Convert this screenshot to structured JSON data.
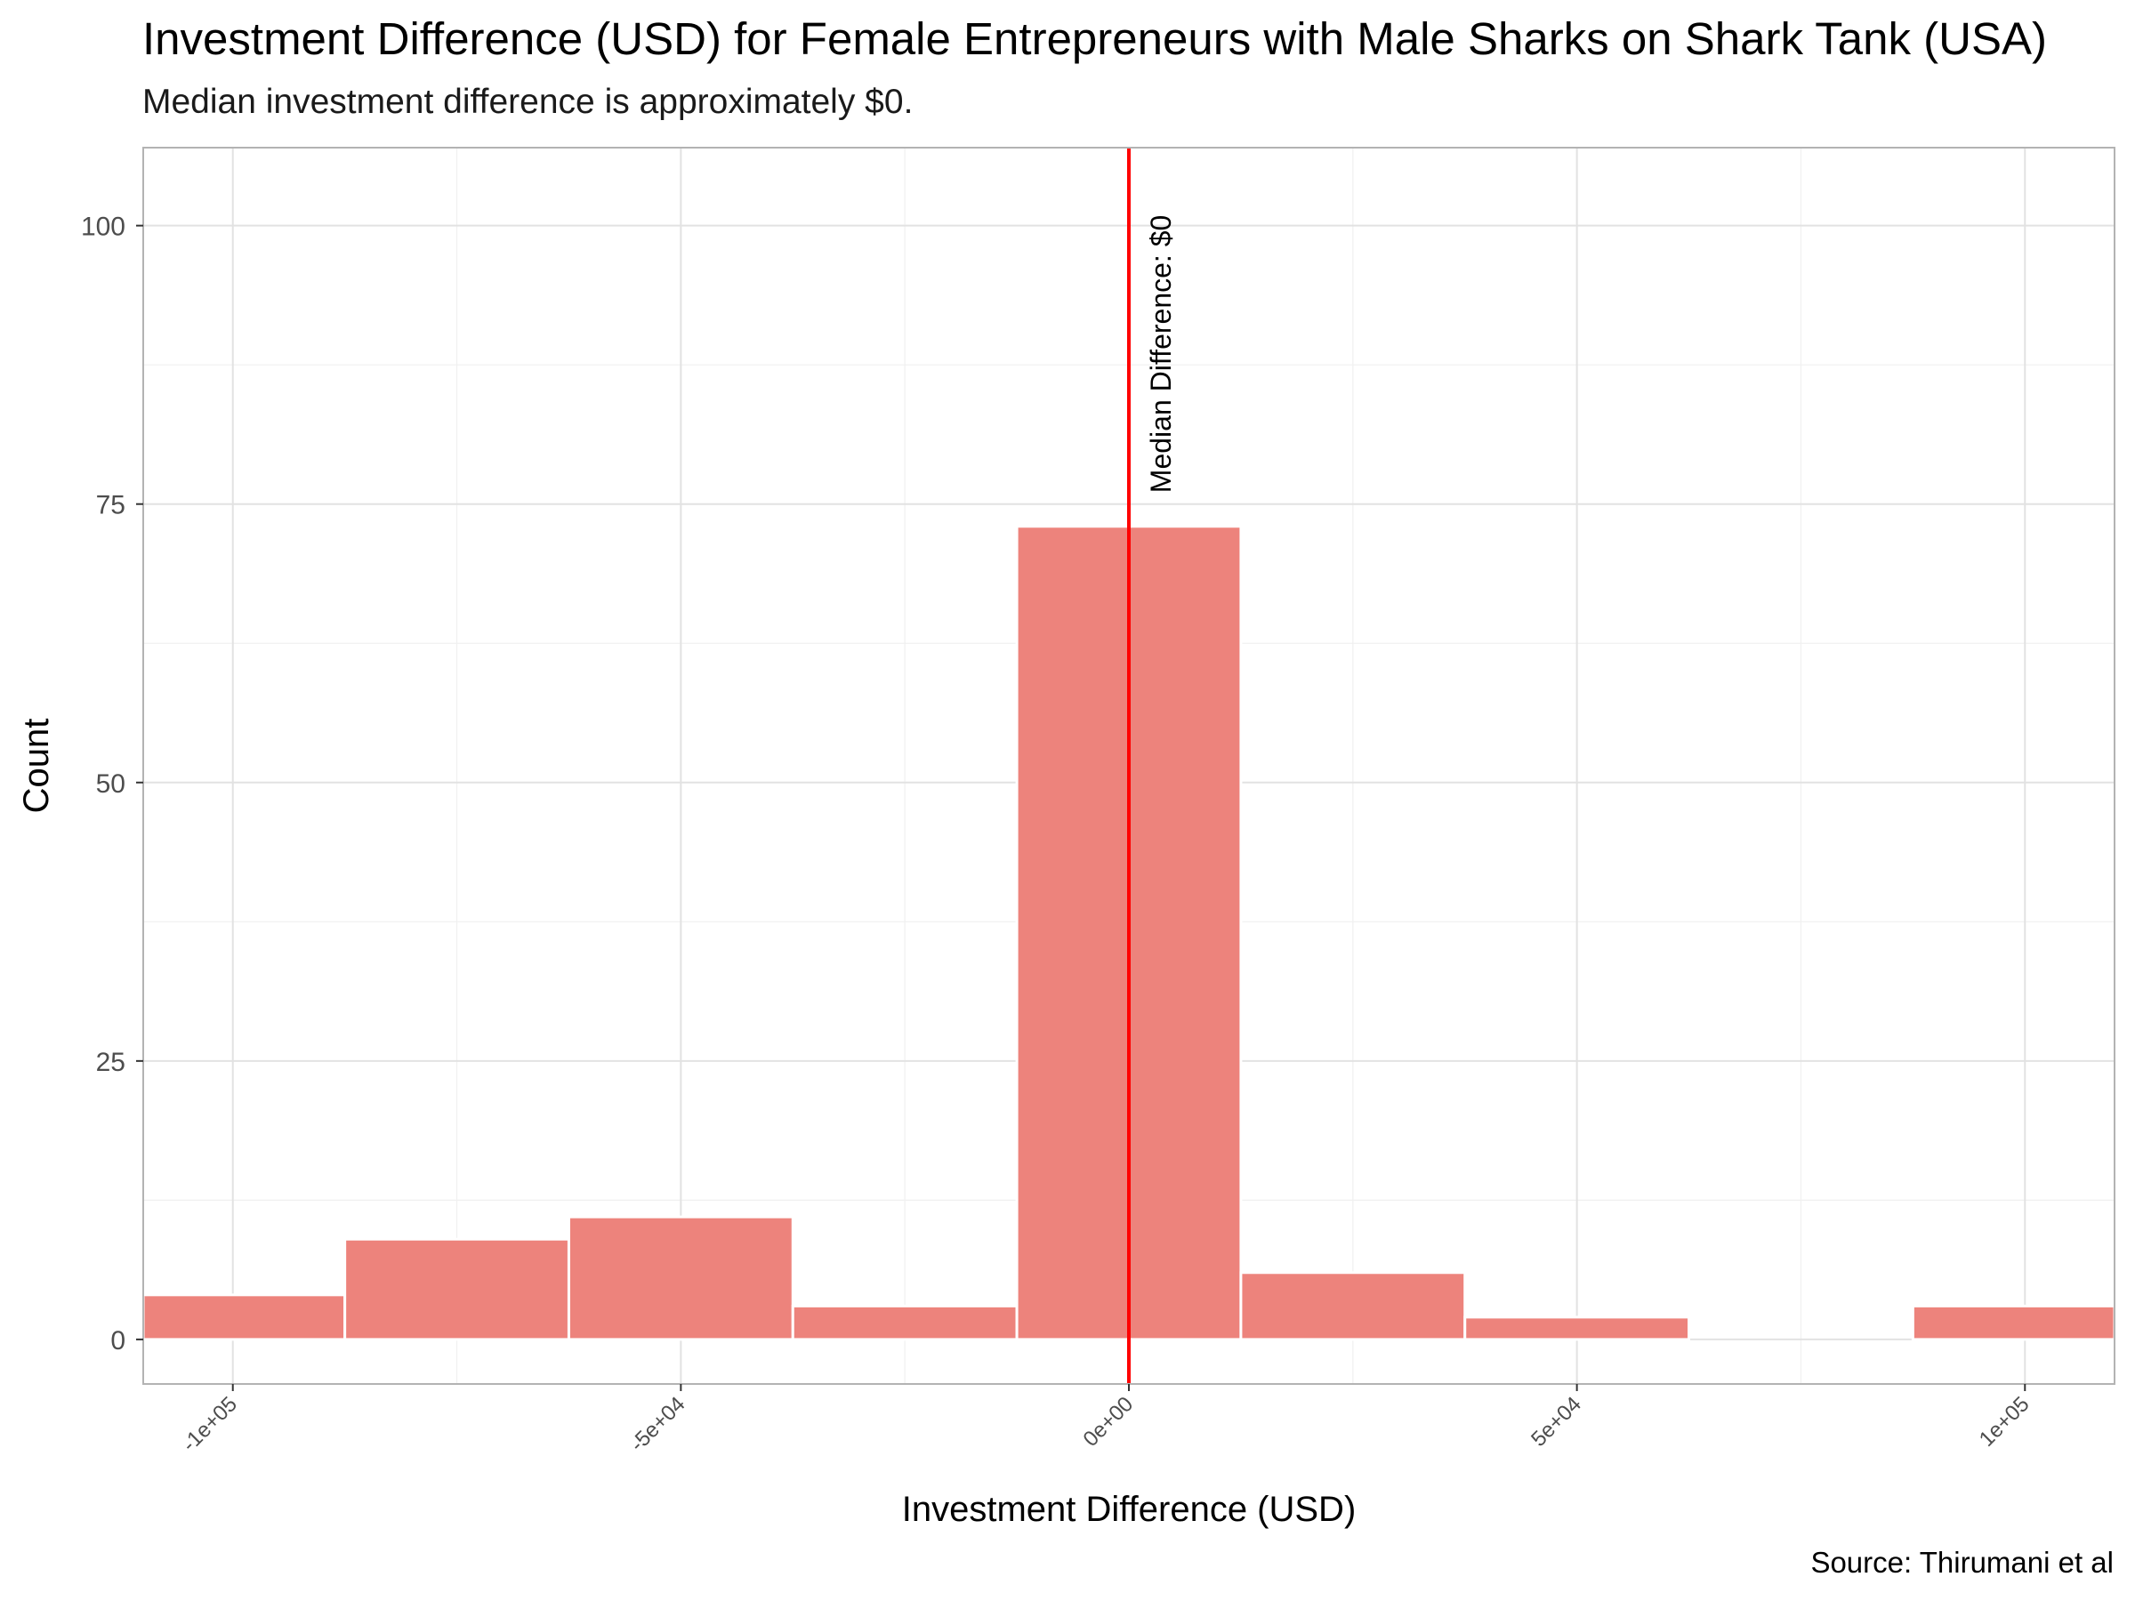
{
  "title": "Investment Difference (USD) for Female Entrepreneurs with Male Sharks on Shark Tank (USA)",
  "subtitle": "Median investment difference is approximately $0.",
  "caption": "Source: Thirumani et al",
  "chart_data": {
    "type": "bar",
    "title": "Investment Difference (USD) for Female Entrepreneurs with Male Sharks on Shark Tank (USA)",
    "subtitle": "Median investment difference is approximately $0.",
    "xlabel": "Investment Difference (USD)",
    "ylabel": "Count",
    "bin_width": 25000,
    "xlim": [
      -110000,
      110000
    ],
    "ylim": [
      -4,
      107
    ],
    "x_ticks": [
      {
        "value": -100000,
        "label": "-1e+05"
      },
      {
        "value": -50000,
        "label": "-5e+04"
      },
      {
        "value": 0,
        "label": "0e+00"
      },
      {
        "value": 50000,
        "label": "5e+04"
      },
      {
        "value": 100000,
        "label": "1e+05"
      }
    ],
    "y_ticks": [
      {
        "value": 0,
        "label": "0"
      },
      {
        "value": 25,
        "label": "25"
      },
      {
        "value": 50,
        "label": "50"
      },
      {
        "value": 75,
        "label": "75"
      },
      {
        "value": 100,
        "label": "100"
      }
    ],
    "bins": [
      {
        "x_start": -112500,
        "x_end": -87500,
        "count": 4
      },
      {
        "x_start": -87500,
        "x_end": -62500,
        "count": 9
      },
      {
        "x_start": -62500,
        "x_end": -37500,
        "count": 11
      },
      {
        "x_start": -37500,
        "x_end": -12500,
        "count": 3
      },
      {
        "x_start": -12500,
        "x_end": 12500,
        "count": 73
      },
      {
        "x_start": 12500,
        "x_end": 37500,
        "count": 6
      },
      {
        "x_start": 37500,
        "x_end": 62500,
        "count": 2
      },
      {
        "x_start": 62500,
        "x_end": 87500,
        "count": 0
      },
      {
        "x_start": 87500,
        "x_end": 112500,
        "count": 3
      }
    ],
    "median": 0,
    "median_label": "Median Difference: $0",
    "bar_color": "#ED837C",
    "median_line_color": "#FF0000",
    "grid": true,
    "legend": "none"
  }
}
